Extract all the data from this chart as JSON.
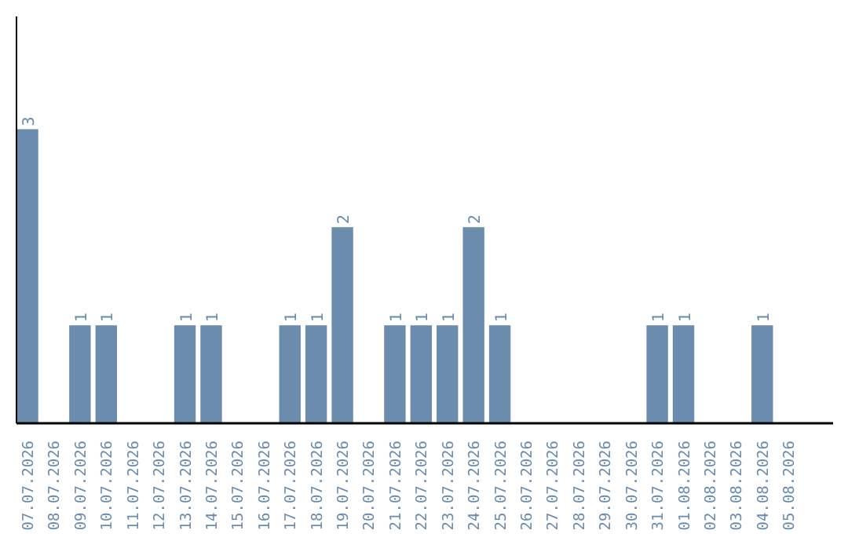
{
  "chart_data": {
    "type": "bar",
    "categories": [
      "07.07.2026",
      "08.07.2026",
      "09.07.2026",
      "10.07.2026",
      "11.07.2026",
      "12.07.2026",
      "13.07.2026",
      "14.07.2026",
      "15.07.2026",
      "16.07.2026",
      "17.07.2026",
      "18.07.2026",
      "19.07.2026",
      "20.07.2026",
      "21.07.2026",
      "22.07.2026",
      "23.07.2026",
      "24.07.2026",
      "25.07.2026",
      "26.07.2026",
      "27.07.2026",
      "28.07.2026",
      "29.07.2026",
      "30.07.2026",
      "31.07.2026",
      "01.08.2026",
      "02.08.2026",
      "03.08.2026",
      "04.08.2026",
      "05.08.2026"
    ],
    "values": [
      3,
      0,
      1,
      1,
      0,
      0,
      1,
      1,
      0,
      0,
      1,
      1,
      2,
      0,
      1,
      1,
      1,
      2,
      1,
      0,
      0,
      0,
      0,
      0,
      1,
      1,
      0,
      0,
      1,
      0
    ],
    "value_labels": [
      "3",
      null,
      "1",
      "1",
      null,
      null,
      "1",
      "1",
      null,
      null,
      "1",
      "1",
      "2",
      null,
      "1",
      "1",
      "1",
      "2",
      "1",
      null,
      null,
      null,
      null,
      null,
      "1",
      "1",
      null,
      null,
      "1",
      null
    ],
    "color": "#6b8cad",
    "ylim": [
      0,
      4.15
    ],
    "tick_labels": "x",
    "grid": false
  }
}
